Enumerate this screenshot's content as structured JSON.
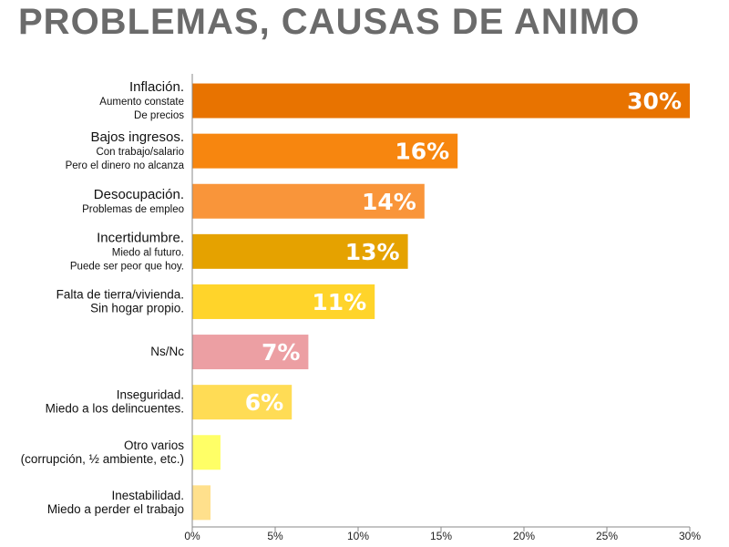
{
  "title": "PROBLEMAS, CAUSAS DE ANIMO",
  "chart_data": {
    "type": "bar",
    "orientation": "horizontal",
    "xlim": [
      0,
      30
    ],
    "x_ticks": [
      0,
      5,
      10,
      15,
      20,
      25,
      30
    ],
    "x_tick_labels": [
      "0%",
      "5%",
      "10%",
      "15%",
      "20%",
      "25%",
      "30%"
    ],
    "grid": false,
    "categories": [
      {
        "main": "Inflación.",
        "sub": [
          "Aumento constate",
          "De precios"
        ],
        "value": 30,
        "label": "30%",
        "color": "#e87300"
      },
      {
        "main": "Bajos ingresos.",
        "sub": [
          "Con trabajo/salario",
          "Pero el dinero no alcanza"
        ],
        "value": 16,
        "label": "16%",
        "color": "#f7860f"
      },
      {
        "main": "Desocupación.",
        "sub": [
          "Problemas de empleo"
        ],
        "value": 14,
        "label": "14%",
        "color": "#f9953a"
      },
      {
        "main": "Incertidumbre.",
        "sub": [
          "Miedo al futuro.",
          "Puede ser peor que hoy."
        ],
        "value": 13,
        "label": "13%",
        "color": "#e5a200"
      },
      {
        "main": "",
        "sub": [
          "Falta de tierra/vivienda.",
          "Sin hogar propio."
        ],
        "value": 11,
        "label": "11%",
        "color": "#ffd42a"
      },
      {
        "main": "",
        "sub": [
          "Ns/Nc"
        ],
        "value": 7,
        "label": "7%",
        "color": "#ec9fa3"
      },
      {
        "main": "",
        "sub": [
          "Inseguridad.",
          "Miedo a los delincuentes."
        ],
        "value": 6,
        "label": "6%",
        "color": "#ffdc55"
      },
      {
        "main": "",
        "sub": [
          "Otro varios",
          "(corrupción, ½ ambiente, etc.)"
        ],
        "value": 1.7,
        "label": "",
        "color": "#ffff66"
      },
      {
        "main": "",
        "sub": [
          "Inestabilidad.",
          "Miedo a perder el trabajo"
        ],
        "value": 1.1,
        "label": "",
        "color": "#ffe08c"
      }
    ]
  }
}
